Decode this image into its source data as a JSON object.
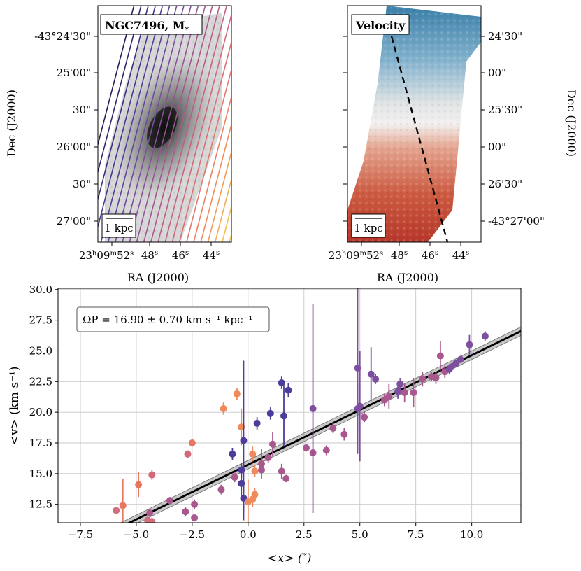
{
  "left_panel": {
    "label": "NGC7496, M",
    "label_sub": "*",
    "scalebar": "1 kpc",
    "xlabel": "RA (J2000)",
    "ylabel": "Dec (J2000)",
    "x_ticks": [
      {
        "h": "23",
        "m": "09",
        "s": "52"
      },
      "48",
      "46",
      "44"
    ],
    "y_ticks": [
      "-43°24'30\"",
      "25'00\"",
      "30\"",
      "26'00\"",
      "30\"",
      "27'00\""
    ],
    "slit_colormap": [
      "#2b1c5a",
      "#4e3c9a",
      "#7d4f9e",
      "#a9588e",
      "#d4697a",
      "#ee8a5b",
      "#f6c34c",
      "#f3ea4a"
    ]
  },
  "right_panel": {
    "label": "Velocity",
    "scalebar": "1 kpc",
    "xlabel": "RA (J2000)",
    "ylabel": "Dec (J2000)",
    "x_ticks": [
      {
        "h": "23",
        "m": "09",
        "s": "52"
      },
      "48",
      "46",
      "44"
    ],
    "y_ticks": [
      "24'30\"",
      "00\"",
      "25'30\"",
      "00\"",
      "26'30\"",
      "-43°27'00\""
    ],
    "colors": {
      "approaching": "#3b7fa8",
      "receding": "#b7372a",
      "systemic": "#f2f0ef"
    }
  },
  "chart_data": {
    "type": "scatter",
    "title": "",
    "xlabel": "<x> (″)",
    "ylabel": "<v> (km s⁻¹)",
    "xlim": [
      -8.5,
      12.2
    ],
    "ylim": [
      11,
      30.1
    ],
    "x_ticks": [
      "−7.5",
      "−5.0",
      "−2.5",
      "0.0",
      "2.5",
      "5.0",
      "7.5",
      "10.0"
    ],
    "y_ticks": [
      "12.5",
      "15.0",
      "17.5",
      "20.0",
      "22.5",
      "25.0",
      "27.5",
      "30.0"
    ],
    "grid": true,
    "annotation": "ΩP = 16.90 ± 0.70 km s⁻¹ kpc⁻¹",
    "fit": {
      "slope": 0.8914,
      "intercept": 15.73,
      "band": 0.35
    },
    "points": [
      {
        "x": -5.9,
        "y": 12.0,
        "e": 0.15,
        "c": "#d0707f"
      },
      {
        "x": -5.6,
        "y": 12.4,
        "e": 2.2,
        "c": "#e9775f"
      },
      {
        "x": -4.9,
        "y": 14.1,
        "e": 1.0,
        "c": "#e9775f"
      },
      {
        "x": -4.4,
        "y": 11.8,
        "e": 0.3,
        "c": "#a9588e"
      },
      {
        "x": -4.5,
        "y": 11.2,
        "e": 0.3,
        "c": "#d0707f"
      },
      {
        "x": -4.3,
        "y": 11.1,
        "e": 0.3,
        "c": "#d0707f"
      },
      {
        "x": -4.3,
        "y": 14.9,
        "e": 0.4,
        "c": "#d4697a"
      },
      {
        "x": -3.5,
        "y": 12.8,
        "e": 0.3,
        "c": "#a9588e"
      },
      {
        "x": -2.8,
        "y": 11.9,
        "e": 0.4,
        "c": "#a9588e"
      },
      {
        "x": -2.7,
        "y": 16.6,
        "e": 0.3,
        "c": "#d4697a"
      },
      {
        "x": -2.5,
        "y": 17.5,
        "e": 0.3,
        "c": "#e9775f"
      },
      {
        "x": -2.4,
        "y": 12.5,
        "e": 0.4,
        "c": "#a9588e"
      },
      {
        "x": -2.4,
        "y": 11.4,
        "e": 0.3,
        "c": "#a9588e"
      },
      {
        "x": -1.2,
        "y": 13.7,
        "e": 0.4,
        "c": "#a9588e"
      },
      {
        "x": -1.1,
        "y": 20.3,
        "e": 0.5,
        "c": "#ee8a5b"
      },
      {
        "x": -0.5,
        "y": 21.5,
        "e": 0.5,
        "c": "#ee8a5b"
      },
      {
        "x": -0.6,
        "y": 14.7,
        "e": 0.4,
        "c": "#a9588e"
      },
      {
        "x": -0.7,
        "y": 16.6,
        "e": 0.5,
        "c": "#4e3c9a"
      },
      {
        "x": -0.3,
        "y": 15.3,
        "e": 0.6,
        "c": "#4e3c9a"
      },
      {
        "x": -0.3,
        "y": 18.8,
        "e": 1.5,
        "c": "#ee8a5b"
      },
      {
        "x": -0.2,
        "y": 17.7,
        "e": 6.5,
        "c": "#4e3c9a"
      },
      {
        "x": -0.3,
        "y": 14.2,
        "e": 1.0,
        "c": "#4e3c9a"
      },
      {
        "x": -0.2,
        "y": 13.0,
        "e": 1.2,
        "c": "#4e3c9a"
      },
      {
        "x": 0.0,
        "y": 12.7,
        "e": 1.8,
        "c": "#ee8a5b"
      },
      {
        "x": 0.2,
        "y": 16.6,
        "e": 0.6,
        "c": "#ee8a5b"
      },
      {
        "x": 0.2,
        "y": 12.9,
        "e": 0.6,
        "c": "#ee8a5b"
      },
      {
        "x": 0.3,
        "y": 13.3,
        "e": 0.5,
        "c": "#ee8a5b"
      },
      {
        "x": 0.3,
        "y": 15.2,
        "e": 0.5,
        "c": "#ee8a5b"
      },
      {
        "x": 0.4,
        "y": 19.1,
        "e": 0.5,
        "c": "#4e3c9a"
      },
      {
        "x": 0.6,
        "y": 15.8,
        "e": 1.2,
        "c": "#a9588e"
      },
      {
        "x": 0.6,
        "y": 15.3,
        "e": 0.6,
        "c": "#a9588e"
      },
      {
        "x": 0.9,
        "y": 16.3,
        "e": 0.4,
        "c": "#a9588e"
      },
      {
        "x": 1.0,
        "y": 19.9,
        "e": 0.5,
        "c": "#4e3c9a"
      },
      {
        "x": 1.1,
        "y": 17.4,
        "e": 1.0,
        "c": "#a9588e"
      },
      {
        "x": 1.5,
        "y": 22.4,
        "e": 0.5,
        "c": "#4e3c9a"
      },
      {
        "x": 1.5,
        "y": 15.2,
        "e": 0.6,
        "c": "#a9588e"
      },
      {
        "x": 1.6,
        "y": 19.7,
        "e": 2.5,
        "c": "#4e3c9a"
      },
      {
        "x": 1.8,
        "y": 21.8,
        "e": 0.6,
        "c": "#4e3c9a"
      },
      {
        "x": 1.7,
        "y": 14.6,
        "e": 0.3,
        "c": "#a9588e"
      },
      {
        "x": 2.6,
        "y": 17.1,
        "e": 0.3,
        "c": "#a9588e"
      },
      {
        "x": 2.9,
        "y": 16.7,
        "e": 0.3,
        "c": "#a9588e"
      },
      {
        "x": 2.9,
        "y": 20.3,
        "e": 8.5,
        "c": "#7d4f9e"
      },
      {
        "x": 3.5,
        "y": 16.9,
        "e": 0.4,
        "c": "#a9588e"
      },
      {
        "x": 3.8,
        "y": 18.7,
        "e": 0.4,
        "c": "#a9588e"
      },
      {
        "x": 4.3,
        "y": 18.2,
        "e": 0.5,
        "c": "#a9588e"
      },
      {
        "x": 4.9,
        "y": 23.6,
        "e": 7.0,
        "c": "#7d4f9e"
      },
      {
        "x": 4.9,
        "y": 20.3,
        "e": 2.0,
        "c": "#7d4f9e"
      },
      {
        "x": 5.0,
        "y": 20.5,
        "e": 4.5,
        "c": "#7d4f9e"
      },
      {
        "x": 5.2,
        "y": 19.6,
        "e": 0.4,
        "c": "#a9588e"
      },
      {
        "x": 5.5,
        "y": 23.1,
        "e": 2.2,
        "c": "#7d4f9e"
      },
      {
        "x": 5.7,
        "y": 22.7,
        "e": 0.4,
        "c": "#7d4f9e"
      },
      {
        "x": 6.1,
        "y": 21.0,
        "e": 0.5,
        "c": "#a9588e"
      },
      {
        "x": 6.3,
        "y": 21.3,
        "e": 1.0,
        "c": "#a9588e"
      },
      {
        "x": 6.7,
        "y": 21.7,
        "e": 0.6,
        "c": "#7d4f9e"
      },
      {
        "x": 6.8,
        "y": 22.3,
        "e": 0.5,
        "c": "#7d4f9e"
      },
      {
        "x": 7.0,
        "y": 21.6,
        "e": 0.8,
        "c": "#a9588e"
      },
      {
        "x": 7.4,
        "y": 21.6,
        "e": 1.2,
        "c": "#a9588e"
      },
      {
        "x": 7.8,
        "y": 22.7,
        "e": 0.6,
        "c": "#a9588e"
      },
      {
        "x": 8.2,
        "y": 22.9,
        "e": 0.4,
        "c": "#a9588e"
      },
      {
        "x": 8.4,
        "y": 22.8,
        "e": 0.5,
        "c": "#a9588e"
      },
      {
        "x": 8.6,
        "y": 24.6,
        "e": 1.2,
        "c": "#a9588e"
      },
      {
        "x": 8.8,
        "y": 23.3,
        "e": 0.5,
        "c": "#a9588e"
      },
      {
        "x": 9.0,
        "y": 23.5,
        "e": 0.4,
        "c": "#7d4f9e"
      },
      {
        "x": 9.1,
        "y": 23.7,
        "e": 0.3,
        "c": "#7d4f9e"
      },
      {
        "x": 9.3,
        "y": 24.0,
        "e": 0.3,
        "c": "#7d4f9e"
      },
      {
        "x": 9.5,
        "y": 24.3,
        "e": 0.3,
        "c": "#7d4f9e"
      },
      {
        "x": 9.9,
        "y": 25.5,
        "e": 0.8,
        "c": "#7d4f9e"
      },
      {
        "x": 10.6,
        "y": 26.2,
        "e": 0.4,
        "c": "#7d4f9e"
      }
    ]
  }
}
